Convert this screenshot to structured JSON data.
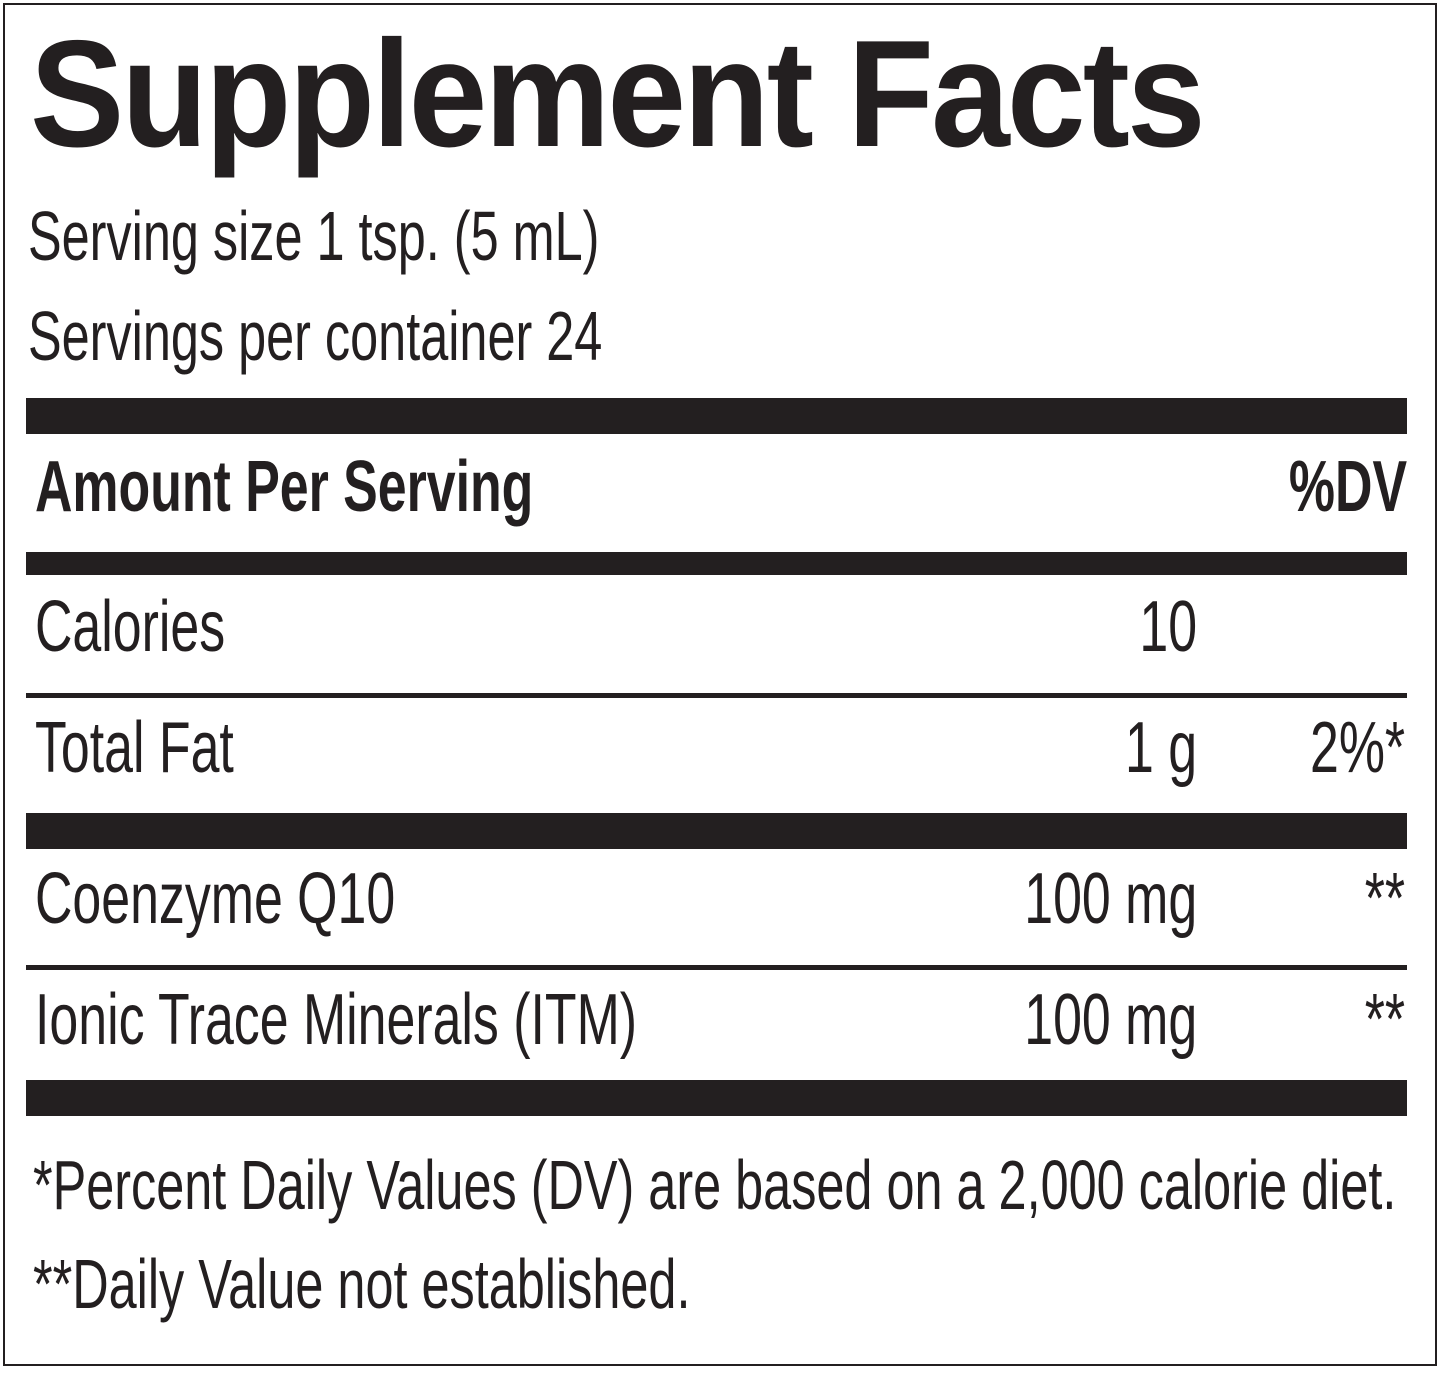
{
  "label": {
    "title": "Supplement Facts",
    "serving_size": "Serving size 1 tsp. (5 mL)",
    "servings_per_container": "Servings per container 24",
    "header": {
      "amount": "Amount Per Serving",
      "dv": "%DV"
    },
    "rows": [
      {
        "name": "Calories",
        "amount": "10",
        "dv": ""
      },
      {
        "name": "Total Fat",
        "amount": "1 g",
        "dv": "2%*"
      },
      {
        "name": "Coenzyme Q10",
        "amount": "100 mg",
        "dv": "**"
      },
      {
        "name": "Ionic Trace Minerals (ITM)",
        "amount": "100 mg",
        "dv": "**"
      }
    ],
    "footnotes": [
      "*Percent Daily Values (DV) are based on a 2,000 calorie diet.",
      "**Daily Value not established."
    ]
  },
  "colors": {
    "ink": "#231f20",
    "background": "#ffffff"
  }
}
